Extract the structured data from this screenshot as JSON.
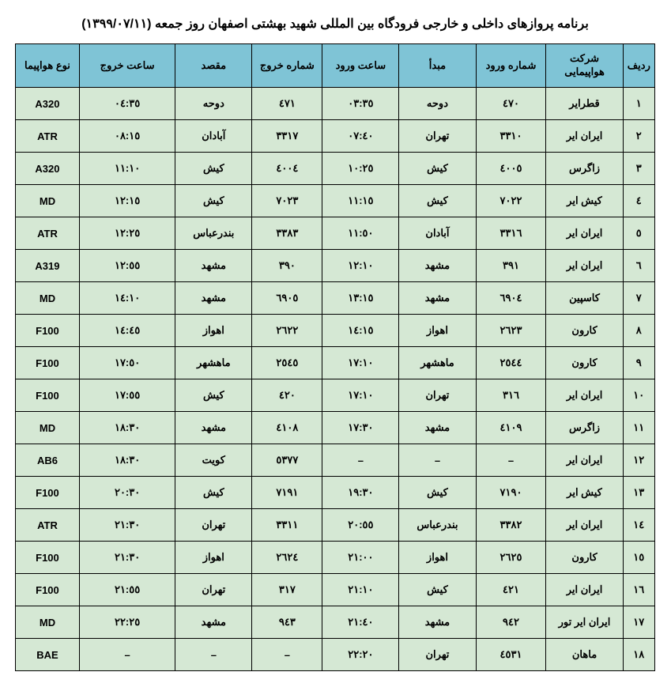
{
  "title": "برنامه پروازهای داخلی و خارجی فرودگاه بین المللی شهید بهشتی اصفهان روز جمعه (۱۳۹۹/۰۷/۱۱)",
  "headers": {
    "row": "ردیف",
    "airline": "شرکت هواپیمایی",
    "arrnum": "شماره ورود",
    "origin": "مبدأ",
    "arrtime": "ساعت ورود",
    "depnum": "شماره خروج",
    "dest": "مقصد",
    "deptime": "ساعت خروج",
    "aircraft": "نوع هواپیما"
  },
  "rows": [
    {
      "n": "۱",
      "airline": "قطرایر",
      "arrnum": "٤٧٠",
      "origin": "دوحه",
      "arrtime": "٠٣:٣٥",
      "depnum": "٤٧١",
      "dest": "دوحه",
      "deptime": "٠٤:٣٥",
      "aircraft": "A320"
    },
    {
      "n": "۲",
      "airline": "ایران ایر",
      "arrnum": "٣٣١٠",
      "origin": "تهران",
      "arrtime": "٠٧:٤٠",
      "depnum": "٣٣١٧",
      "dest": "آبادان",
      "deptime": "٠٨:١٥",
      "aircraft": "ATR"
    },
    {
      "n": "۳",
      "airline": "زاگرس",
      "arrnum": "٤٠٠٥",
      "origin": "کیش",
      "arrtime": "١٠:٢٥",
      "depnum": "٤٠٠٤",
      "dest": "کیش",
      "deptime": "١١:١٠",
      "aircraft": "A320"
    },
    {
      "n": "٤",
      "airline": "کیش ایر",
      "arrnum": "٧٠٢٢",
      "origin": "کیش",
      "arrtime": "١١:١٥",
      "depnum": "٧٠٢٣",
      "dest": "کیش",
      "deptime": "١٢:١٥",
      "aircraft": "MD"
    },
    {
      "n": "٥",
      "airline": "ایران ایر",
      "arrnum": "٣٣١٦",
      "origin": "آبادان",
      "arrtime": "١١:٥٠",
      "depnum": "٣٣٨٣",
      "dest": "بندرعباس",
      "deptime": "١٢:٢٥",
      "aircraft": "ATR"
    },
    {
      "n": "٦",
      "airline": "ایران ایر",
      "arrnum": "٣٩١",
      "origin": "مشهد",
      "arrtime": "١٢:١٠",
      "depnum": "٣٩٠",
      "dest": "مشهد",
      "deptime": "١٢:٥٥",
      "aircraft": "A319"
    },
    {
      "n": "٧",
      "airline": "کاسپین",
      "arrnum": "٦٩٠٤",
      "origin": "مشهد",
      "arrtime": "١٣:١٥",
      "depnum": "٦٩٠٥",
      "dest": "مشهد",
      "deptime": "١٤:١٠",
      "aircraft": "MD"
    },
    {
      "n": "٨",
      "airline": "کارون",
      "arrnum": "٢٦٢٣",
      "origin": "اهواز",
      "arrtime": "١٤:١٥",
      "depnum": "٢٦٢٢",
      "dest": "اهواز",
      "deptime": "١٤:٤٥",
      "aircraft": "F100"
    },
    {
      "n": "٩",
      "airline": "کارون",
      "arrnum": "٢٥٤٤",
      "origin": "ماهشهر",
      "arrtime": "١٧:١٠",
      "depnum": "٢٥٤٥",
      "dest": "ماهشهر",
      "deptime": "١٧:٥٠",
      "aircraft": "F100"
    },
    {
      "n": "١٠",
      "airline": "ایران ایر",
      "arrnum": "٣١٦",
      "origin": "تهران",
      "arrtime": "١٧:١٠",
      "depnum": "٤٢٠",
      "dest": "کیش",
      "deptime": "١٧:٥٥",
      "aircraft": "F100"
    },
    {
      "n": "١١",
      "airline": "زاگرس",
      "arrnum": "٤١٠٩",
      "origin": "مشهد",
      "arrtime": "١٧:٣٠",
      "depnum": "٤١٠٨",
      "dest": "مشهد",
      "deptime": "١٨:٣٠",
      "aircraft": "MD"
    },
    {
      "n": "١٢",
      "airline": "ایران ایر",
      "arrnum": "–",
      "origin": "–",
      "arrtime": "–",
      "depnum": "٥٣٧٧",
      "dest": "کویت",
      "deptime": "١٨:٣٠",
      "aircraft": "AB6"
    },
    {
      "n": "١٣",
      "airline": "کیش ایر",
      "arrnum": "٧١٩٠",
      "origin": "کیش",
      "arrtime": "١٩:٣٠",
      "depnum": "٧١٩١",
      "dest": "کیش",
      "deptime": "٢٠:٣٠",
      "aircraft": "F100"
    },
    {
      "n": "١٤",
      "airline": "ایران ایر",
      "arrnum": "٣٣٨٢",
      "origin": "بندرعباس",
      "arrtime": "٢٠:٥٥",
      "depnum": "٣٣١١",
      "dest": "تهران",
      "deptime": "٢١:٣٠",
      "aircraft": "ATR"
    },
    {
      "n": "١٥",
      "airline": "کارون",
      "arrnum": "٢٦٢٥",
      "origin": "اهواز",
      "arrtime": "٢١:٠٠",
      "depnum": "٢٦٢٤",
      "dest": "اهواز",
      "deptime": "٢١:٣٠",
      "aircraft": "F100"
    },
    {
      "n": "١٦",
      "airline": "ایران ایر",
      "arrnum": "٤٢١",
      "origin": "کیش",
      "arrtime": "٢١:١٠",
      "depnum": "٣١٧",
      "dest": "تهران",
      "deptime": "٢١:٥٥",
      "aircraft": "F100"
    },
    {
      "n": "١٧",
      "airline": "ایران ایر تور",
      "arrnum": "٩٤٢",
      "origin": "مشهد",
      "arrtime": "٢١:٤٠",
      "depnum": "٩٤٣",
      "dest": "مشهد",
      "deptime": "٢٢:٢٥",
      "aircraft": "MD"
    },
    {
      "n": "١٨",
      "airline": "ماهان",
      "arrnum": "٤٥٣١",
      "origin": "تهران",
      "arrtime": "٢٢:٢٠",
      "depnum": "–",
      "dest": "–",
      "deptime": "–",
      "aircraft": "BAE"
    }
  ],
  "style": {
    "header_bg": "#7fc4d6",
    "row_bg": "#d5e8d4",
    "border_color": "#000000",
    "title_fontsize": 16,
    "cell_fontsize": 13
  }
}
